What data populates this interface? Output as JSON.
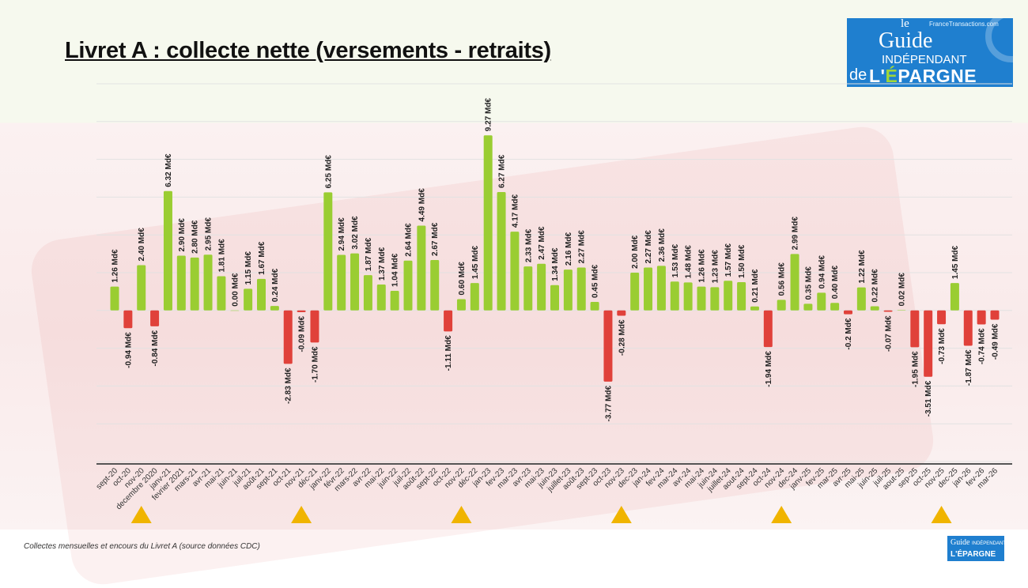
{
  "title": "Livret A : collecte nette (versements - retraits)",
  "footer": "Collectes mensuelles et encours du Livret A (source données CDC)",
  "logo": {
    "le": "le",
    "guide": "Guide",
    "independant": "INDÉPENDANT",
    "de": "de",
    "epargne_pre": "L'",
    "epargne_e": "É",
    "epargne_post": "PARGNE",
    "site": "FranceTransactions.com"
  },
  "colors": {
    "positive": "#9acd32",
    "negative": "#e0413a",
    "marker": "#f0b400"
  },
  "chart_data": {
    "type": "bar",
    "unit_suffix": " Md€",
    "ylim": [
      -8,
      12
    ],
    "grid": true,
    "categories": [
      "sept-20",
      "oct-20",
      "nov-20",
      "decembre 2020",
      "janv-21",
      "fevrier 2021",
      "mars-21",
      "avr-21",
      "mai-21",
      "juin-21",
      "juil-21",
      "août-21",
      "sept-21",
      "oct-21",
      "nov-21",
      "déc-21",
      "janv-22",
      "févr-22",
      "mars-22",
      "avr-22",
      "mai-22",
      "juin-22",
      "juil-22",
      "août-22",
      "sept-22",
      "oct-22",
      "nov-22",
      "déc-22",
      "jan-23",
      "fev-23",
      "mar-23",
      "avr-23",
      "mai-23",
      "juin-23",
      "juillet-23",
      "août-23",
      "sept-23",
      "oct-23",
      "nov-23",
      "dec-23",
      "jan-24",
      "fev-24",
      "mar-24",
      "avr-24",
      "mai-24",
      "juin-24",
      "juillet-24",
      "aout-24",
      "sept-24",
      "oct-24",
      "nov-24",
      "dec-24",
      "janv-25",
      "fev-25",
      "mar-25",
      "avr-25",
      "mai-25",
      "juin-25",
      "juil-25",
      "aout-25",
      "sep-25",
      "oct-25",
      "nov-25",
      "dec-25",
      "jan-26",
      "fev-26",
      "mar-26"
    ],
    "values": [
      1.26,
      -0.94,
      2.4,
      -0.84,
      6.32,
      2.9,
      2.8,
      2.95,
      1.81,
      0.0,
      1.15,
      1.67,
      0.24,
      -2.83,
      -0.09,
      -1.7,
      6.25,
      2.94,
      3.02,
      1.87,
      1.37,
      1.04,
      2.64,
      4.49,
      2.67,
      -1.11,
      0.6,
      1.45,
      9.27,
      6.27,
      4.17,
      2.33,
      2.47,
      1.34,
      2.16,
      2.27,
      0.45,
      -3.77,
      -0.28,
      2.0,
      2.27,
      2.36,
      1.53,
      1.48,
      1.26,
      1.23,
      1.57,
      1.5,
      0.21,
      -1.94,
      0.56,
      2.99,
      0.35,
      0.94,
      0.4,
      -0.2,
      1.22,
      0.22,
      -0.07,
      0.02,
      -1.95,
      -3.51,
      -0.73,
      1.45,
      -1.87,
      -0.74,
      -0.49
    ],
    "data_labels": [
      "1.26 Md€",
      "-0.94 Md€",
      "2.40 Md€",
      "-0.84 Md€",
      "6.32 Md€",
      "2.90 Md€",
      "2.80 Md€",
      "2.95 Md€",
      "1.81 Md€",
      "0.00 Md€",
      "1.15 Md€",
      "1.67 Md€",
      "0.24 Md€",
      "-2.83 Md€",
      "-0.09 Md€",
      "-1.70 Md€",
      "6.25 Md€",
      "2.94 Md€",
      "3.02 Md€",
      "1.87 Md€",
      "1.37 Md€",
      "1.04 Md€",
      "2.64 Md€",
      "4.49 Md€",
      "2.67 Md€",
      "-1.11 Md€",
      "0.60 Md€",
      "1.45 Md€",
      "9.27 Md€",
      "6.27 Md€",
      "4.17 Md€",
      "2.33 Md€",
      "2.47 Md€",
      "1.34 Md€",
      "2.16 Md€",
      "2.27 Md€",
      "0.45 Md€",
      "-3.77 Md€",
      "-0.28 Md€",
      "2.00 Md€",
      "2.27 Md€",
      "2.36 Md€",
      "1.53 Md€",
      "1.48 Md€",
      "1.26 Md€",
      "1.23 Md€",
      "1.57 Md€",
      "1.50 Md€",
      "0.21 Md€",
      "-1.94 Md€",
      "0.56 Md€",
      "2.99 Md€",
      "0.35 Md€",
      "0.94 Md€",
      "0.40 Md€",
      "-0.2 Md€",
      "1.22 Md€",
      "0.22 Md€",
      "-0.07 Md€",
      "0.02 Md€",
      "-1.95 Md€",
      "-3.51 Md€",
      "-0.73 Md€",
      "1.45 Md€",
      "-1.87 Md€",
      "-0.74 Md€",
      "-0.49 Md€"
    ],
    "markers_at": [
      "nov-20",
      "nov-21",
      "nov-22",
      "nov-23",
      "nov-24",
      "nov-25"
    ]
  }
}
